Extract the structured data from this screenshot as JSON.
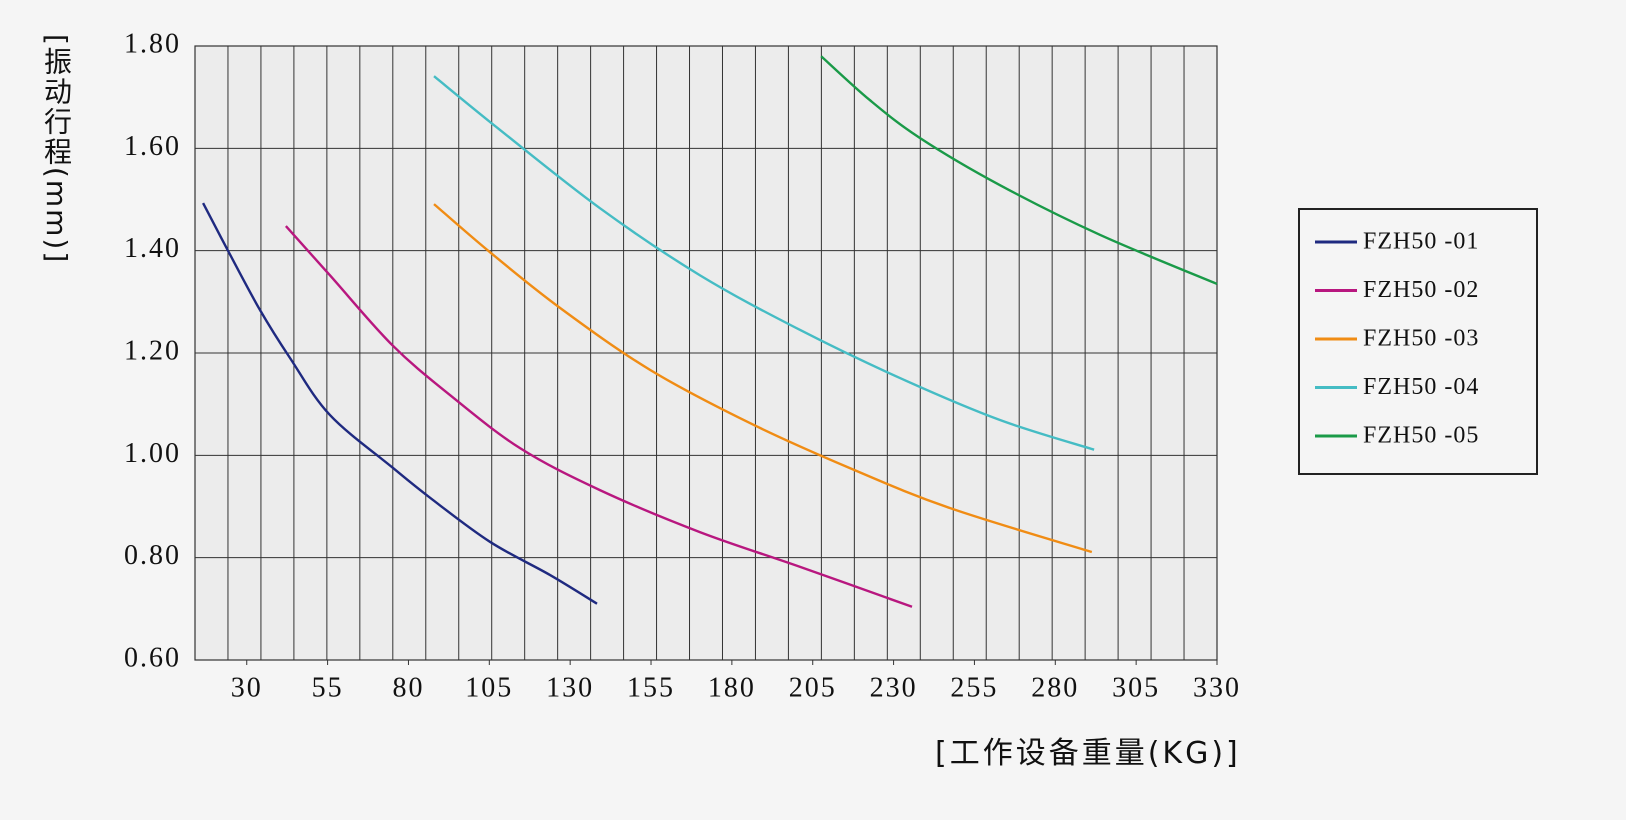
{
  "chart_data": {
    "type": "line",
    "y_label": "[振动行程(mm)]",
    "x_label": "[工作设备重量(KG)]",
    "xlim": [
      14,
      330
    ],
    "xticks": [
      30,
      55,
      80,
      105,
      130,
      155,
      180,
      205,
      230,
      255,
      280,
      305,
      330
    ],
    "ylim": [
      0.6,
      1.8
    ],
    "yticks": [
      {
        "value": 0.6,
        "label": "0.60"
      },
      {
        "value": 0.8,
        "label": "0.80"
      },
      {
        "value": 1.0,
        "label": "1.00"
      },
      {
        "value": 1.2,
        "label": "1.20"
      },
      {
        "value": 1.4,
        "label": "1.40"
      },
      {
        "value": 1.6,
        "label": "1.60"
      },
      {
        "value": 1.8,
        "label": "1.80"
      }
    ],
    "grid": true,
    "legend": "right",
    "series": [
      {
        "name": "FZH50 -01",
        "color": "#1f2a80",
        "x": [
          16.5,
          24.2,
          34.1,
          43.4,
          55.7,
          74.9,
          86.7,
          105.2,
          123.8,
          138.3
        ],
        "values": [
          1.493,
          1.4,
          1.284,
          1.19,
          1.079,
          0.977,
          0.917,
          0.831,
          0.766,
          0.71
        ]
      },
      {
        "name": "FZH50 -02",
        "color": "#b8177f",
        "x": [
          42.1,
          55.7,
          74.9,
          92.8,
          114.5,
          139.2,
          170.1,
          201.1,
          235.7
        ],
        "values": [
          1.448,
          1.352,
          1.216,
          1.118,
          1.014,
          0.932,
          0.85,
          0.782,
          0.704
        ]
      },
      {
        "name": "FZH50 -03",
        "color": "#f08c14",
        "x": [
          87.9,
          105.2,
          126.9,
          154.7,
          185.6,
          216.5,
          247.4,
          291.3
        ],
        "values": [
          1.491,
          1.397,
          1.288,
          1.167,
          1.063,
          0.975,
          0.897,
          0.811
        ]
      },
      {
        "name": "FZH50 -04",
        "color": "#45bcc4",
        "x": [
          87.9,
          108.3,
          139.2,
          170.1,
          201.1,
          232.0,
          262.9,
          292.0
        ],
        "values": [
          1.741,
          1.636,
          1.483,
          1.352,
          1.245,
          1.151,
          1.069,
          1.011
        ]
      },
      {
        "name": "FZH50 -05",
        "color": "#1a9a48",
        "x": [
          207.6,
          222.7,
          238.2,
          262.9,
          293.8,
          330
        ],
        "values": [
          1.78,
          1.694,
          1.62,
          1.528,
          1.431,
          1.335
        ]
      }
    ]
  }
}
